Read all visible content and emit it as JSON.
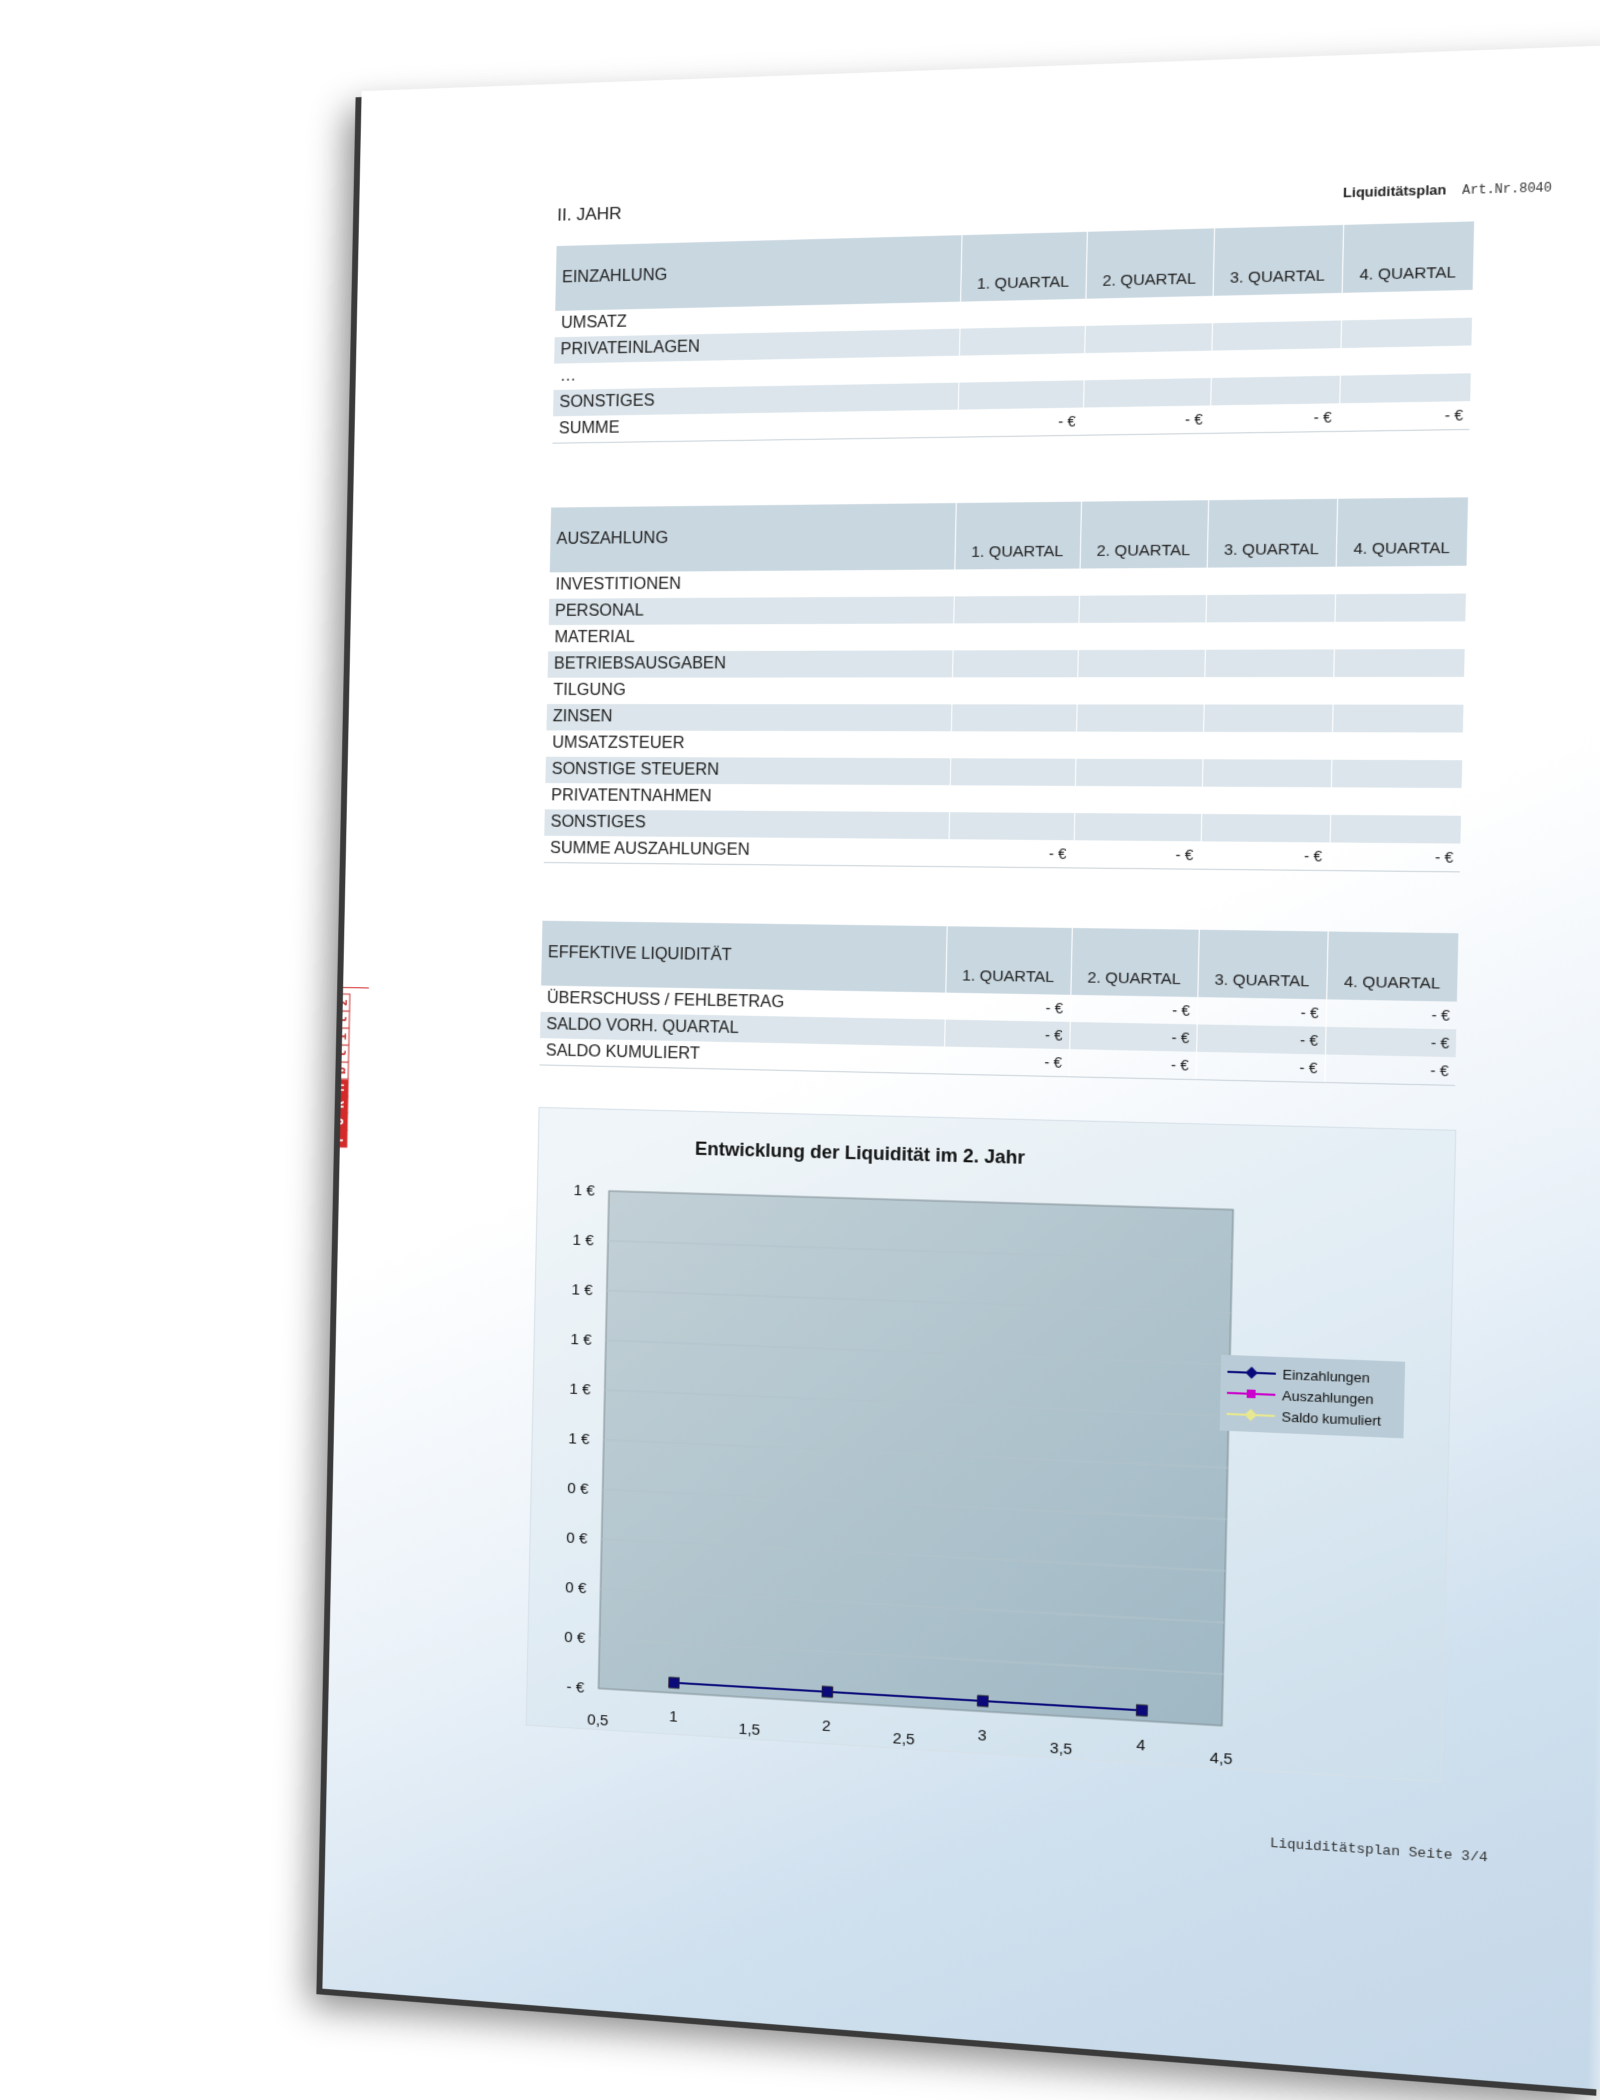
{
  "header": {
    "year": "II. JAHR",
    "doc_title": "Liquiditätsplan",
    "art_nr": "Art.Nr.8040"
  },
  "einzahlung": {
    "title": "EINZAHLUNG",
    "quarters": [
      "1. QUARTAL",
      "2. QUARTAL",
      "3. QUARTAL",
      "4. QUARTAL"
    ],
    "rows": [
      "UMSATZ",
      "PRIVATEINLAGEN",
      "…",
      "SONSTIGES"
    ],
    "sum_label": "SUMME",
    "sum_values": [
      "- €",
      "- €",
      "- €",
      "- €"
    ]
  },
  "auszahlung": {
    "title": "AUSZAHLUNG",
    "quarters": [
      "1. QUARTAL",
      "2. QUARTAL",
      "3. QUARTAL",
      "4. QUARTAL"
    ],
    "rows": [
      "INVESTITIONEN",
      "PERSONAL",
      "MATERIAL",
      "BETRIEBSAUSGABEN",
      "TILGUNG",
      "ZINSEN",
      "UMSATZSTEUER",
      "SONSTIGE STEUERN",
      "PRIVATENTNAHMEN",
      "SONSTIGES"
    ],
    "sum_label": "SUMME AUSZAHLUNGEN",
    "sum_values": [
      "- €",
      "- €",
      "- €",
      "- €"
    ]
  },
  "liquiditaet": {
    "title": "EFFEKTIVE LIQUIDITÄT",
    "quarters": [
      "1. QUARTAL",
      "2. QUARTAL",
      "3. QUARTAL",
      "4. QUARTAL"
    ],
    "rows": [
      {
        "label": "ÜBERSCHUSS / FEHLBETRAG",
        "values": [
          "- €",
          "- €",
          "- €",
          "- €"
        ]
      },
      {
        "label": "SALDO VORH. QUARTAL",
        "values": [
          "- €",
          "- €",
          "- €",
          "- €"
        ]
      },
      {
        "label": "SALDO KUMULIERT",
        "values": [
          "- €",
          "- €",
          "- €",
          "- €"
        ]
      }
    ]
  },
  "logo": {
    "letters_red": [
      "F",
      "O",
      "R",
      "M"
    ],
    "letters_white": [
      "b",
      "l",
      "i",
      "t",
      "z"
    ]
  },
  "chart_data": {
    "type": "line",
    "title": "Entwicklung der Liquidität im 2. Jahr",
    "xlabel": "",
    "ylabel": "",
    "x_ticks": [
      "0,5",
      "1",
      "1,5",
      "2",
      "2,5",
      "3",
      "3,5",
      "4",
      "4,5"
    ],
    "xlim": [
      0.5,
      4.5
    ],
    "y_ticks": [
      "- €",
      "0 €",
      "0 €",
      "0 €",
      "0 €",
      "1 €",
      "1 €",
      "1 €",
      "1 €",
      "1 €",
      "1 €"
    ],
    "ylim": [
      0,
      1
    ],
    "grid": true,
    "legend_position": "right",
    "x": [
      1,
      2,
      3,
      4
    ],
    "series": [
      {
        "name": "Einzahlungen",
        "values": [
          0,
          0,
          0,
          0
        ],
        "color": "#0a0a7a"
      },
      {
        "name": "Auszahlungen",
        "values": [
          0,
          0,
          0,
          0
        ],
        "color": "#cc00cc"
      },
      {
        "name": "Saldo kumuliert",
        "values": [
          0,
          0,
          0,
          0
        ],
        "color": "#e8e890"
      }
    ]
  },
  "footer": "Liquiditätsplan Seite 3/4"
}
